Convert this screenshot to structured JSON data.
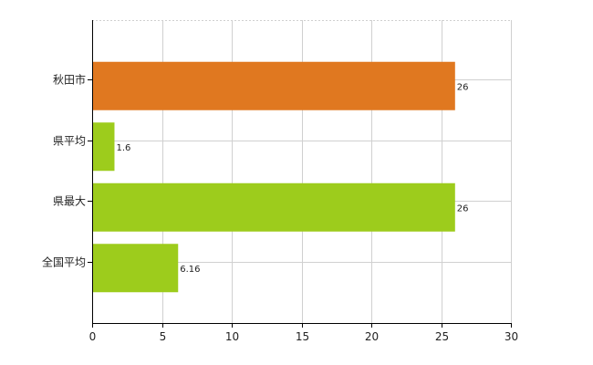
{
  "chart_data": {
    "type": "bar",
    "orientation": "horizontal",
    "categories": [
      "秋田市",
      "県平均",
      "県最大",
      "全国平均"
    ],
    "values": [
      26,
      1.6,
      26,
      6.16
    ],
    "value_labels": [
      "26",
      "1.6",
      "26",
      "6.16"
    ],
    "bar_colors": [
      "#e07820",
      "#9dcc1c",
      "#9dcc1c",
      "#9dcc1c"
    ],
    "xlim": [
      0,
      30
    ],
    "xticks": [
      0,
      5,
      10,
      15,
      20,
      25,
      30
    ],
    "grid": true,
    "grid_color": "#d0d0d0",
    "title": "",
    "xlabel": "",
    "ylabel": ""
  }
}
